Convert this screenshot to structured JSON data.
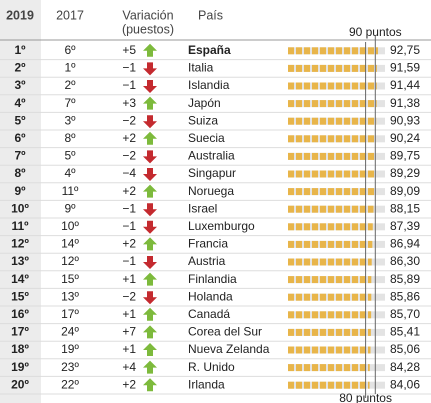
{
  "chart_data": {
    "type": "ranking-table",
    "header": {
      "rank": "2019",
      "prev": "2017",
      "change": [
        "Variación",
        "(puestos)"
      ],
      "country": "País"
    },
    "xlim": [
      0,
      100
    ],
    "ref_lines": [
      {
        "value": 90,
        "label": "90 puntos"
      },
      {
        "value": 80,
        "label": "80 puntos"
      }
    ],
    "colors": {
      "bar": "#e8b54a",
      "track": "#e3e3e3",
      "up": "#7dba3c",
      "down": "#c42a2f"
    },
    "rows": [
      {
        "rank": "1º",
        "prev": "6º",
        "change": "+5",
        "dir": "up",
        "country": "España",
        "score": 92.75,
        "score_label": "92,75"
      },
      {
        "rank": "2º",
        "prev": "1º",
        "change": "−1",
        "dir": "down",
        "country": "Italia",
        "score": 91.59,
        "score_label": "91,59"
      },
      {
        "rank": "3º",
        "prev": "2º",
        "change": "−1",
        "dir": "down",
        "country": "Islandia",
        "score": 91.44,
        "score_label": "91,44"
      },
      {
        "rank": "4º",
        "prev": "7º",
        "change": "+3",
        "dir": "up",
        "country": "Japón",
        "score": 91.38,
        "score_label": "91,38"
      },
      {
        "rank": "5º",
        "prev": "3º",
        "change": "−2",
        "dir": "down",
        "country": "Suiza",
        "score": 90.93,
        "score_label": "90,93"
      },
      {
        "rank": "6º",
        "prev": "8º",
        "change": "+2",
        "dir": "up",
        "country": "Suecia",
        "score": 90.24,
        "score_label": "90,24"
      },
      {
        "rank": "7º",
        "prev": "5º",
        "change": "−2",
        "dir": "down",
        "country": "Australia",
        "score": 89.75,
        "score_label": "89,75"
      },
      {
        "rank": "8º",
        "prev": "4º",
        "change": "−4",
        "dir": "down",
        "country": "Singapur",
        "score": 89.29,
        "score_label": "89,29"
      },
      {
        "rank": "9º",
        "prev": "11º",
        "change": "+2",
        "dir": "up",
        "country": "Noruega",
        "score": 89.09,
        "score_label": "89,09"
      },
      {
        "rank": "10º",
        "prev": "9º",
        "change": "−1",
        "dir": "down",
        "country": "Israel",
        "score": 88.15,
        "score_label": "88,15"
      },
      {
        "rank": "11º",
        "prev": "10º",
        "change": "−1",
        "dir": "down",
        "country": "Luxemburgo",
        "score": 87.39,
        "score_label": "87,39"
      },
      {
        "rank": "12º",
        "prev": "14º",
        "change": "+2",
        "dir": "up",
        "country": "Francia",
        "score": 86.94,
        "score_label": "86,94"
      },
      {
        "rank": "13º",
        "prev": "12º",
        "change": "−1",
        "dir": "down",
        "country": "Austria",
        "score": 86.3,
        "score_label": "86,30"
      },
      {
        "rank": "14º",
        "prev": "15º",
        "change": "+1",
        "dir": "up",
        "country": "Finlandia",
        "score": 85.89,
        "score_label": "85,89"
      },
      {
        "rank": "15º",
        "prev": "13º",
        "change": "−2",
        "dir": "down",
        "country": "Holanda",
        "score": 85.86,
        "score_label": "85,86"
      },
      {
        "rank": "16º",
        "prev": "17º",
        "change": "+1",
        "dir": "up",
        "country": "Canadá",
        "score": 85.7,
        "score_label": "85,70"
      },
      {
        "rank": "17º",
        "prev": "24º",
        "change": "+7",
        "dir": "up",
        "country": "Corea del Sur",
        "score": 85.41,
        "score_label": "85,41"
      },
      {
        "rank": "18º",
        "prev": "19º",
        "change": "+1",
        "dir": "up",
        "country": "Nueva Zelanda",
        "score": 85.06,
        "score_label": "85,06"
      },
      {
        "rank": "19º",
        "prev": "23º",
        "change": "+4",
        "dir": "up",
        "country": "R. Unido",
        "score": 84.28,
        "score_label": "84,28"
      },
      {
        "rank": "20º",
        "prev": "22º",
        "change": "+2",
        "dir": "up",
        "country": "Irlanda",
        "score": 84.06,
        "score_label": "84,06"
      }
    ]
  }
}
